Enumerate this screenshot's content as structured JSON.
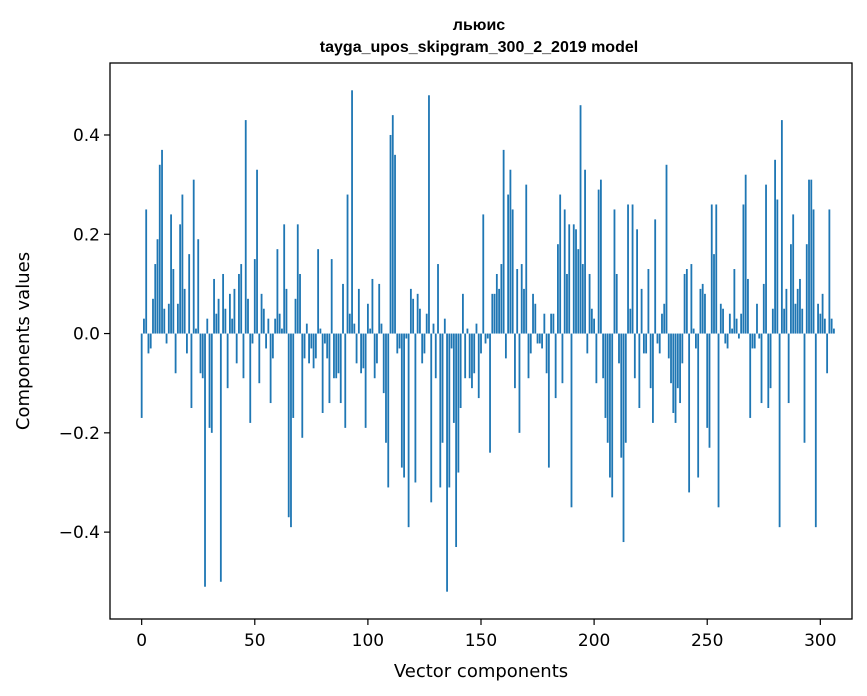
{
  "chart_data": {
    "type": "bar",
    "title": "льюис",
    "subtitle": "tayga_upos_skipgram_300_2_2019 model",
    "xlabel": "Vector components",
    "ylabel": "Components values",
    "xlim": [
      -14,
      314
    ],
    "ylim": [
      -0.575,
      0.545
    ],
    "xticks": [
      0,
      50,
      100,
      150,
      200,
      250,
      300
    ],
    "xtick_labels": [
      "0",
      "50",
      "100",
      "150",
      "200",
      "250",
      "300"
    ],
    "yticks": [
      -0.4,
      -0.2,
      0.0,
      0.2,
      0.4
    ],
    "ytick_labels": [
      "−0.4",
      "−0.2",
      "0.0",
      "0.2",
      "0.4"
    ],
    "bar_color": "#1f77b4",
    "grid": false,
    "values": [
      -0.17,
      0.03,
      0.25,
      -0.04,
      -0.03,
      0.07,
      0.14,
      0.19,
      0.34,
      0.37,
      0.05,
      -0.02,
      0.06,
      0.24,
      0.13,
      -0.08,
      0.06,
      0.22,
      0.28,
      0.09,
      -0.04,
      0.16,
      -0.15,
      0.31,
      0.01,
      0.19,
      -0.08,
      -0.09,
      -0.51,
      0.03,
      -0.19,
      -0.2,
      0.11,
      0.04,
      0.07,
      -0.5,
      0.12,
      0.05,
      -0.11,
      0.08,
      0.03,
      0.09,
      -0.06,
      0.12,
      0.14,
      -0.09,
      0.43,
      0.07,
      -0.18,
      -0.02,
      0.15,
      0.33,
      -0.1,
      0.08,
      0.05,
      -0.03,
      0.03,
      -0.14,
      -0.05,
      0.03,
      0.17,
      0.04,
      0.01,
      0.22,
      0.09,
      -0.37,
      -0.39,
      -0.17,
      0.07,
      0.22,
      0.12,
      -0.21,
      -0.05,
      0.02,
      -0.06,
      -0.03,
      -0.07,
      -0.05,
      0.17,
      0.01,
      -0.16,
      -0.02,
      -0.05,
      -0.14,
      0.15,
      -0.09,
      -0.09,
      -0.08,
      -0.14,
      0.1,
      -0.19,
      0.28,
      0.04,
      0.49,
      0.02,
      -0.06,
      0.09,
      -0.08,
      -0.07,
      -0.19,
      0.06,
      0.01,
      0.11,
      -0.09,
      -0.06,
      0.1,
      0.02,
      -0.12,
      -0.22,
      -0.31,
      0.4,
      0.44,
      0.36,
      -0.04,
      -0.03,
      -0.27,
      -0.29,
      -0.01,
      -0.39,
      0.09,
      0.07,
      -0.3,
      0.08,
      0.05,
      -0.06,
      -0.04,
      0.04,
      0.48,
      -0.34,
      0.02,
      -0.09,
      0.14,
      -0.31,
      -0.22,
      0.03,
      -0.52,
      -0.31,
      -0.03,
      -0.18,
      -0.43,
      -0.28,
      -0.15,
      0.08,
      -0.09,
      0.01,
      -0.09,
      -0.11,
      -0.08,
      0.02,
      -0.13,
      -0.04,
      0.24,
      -0.02,
      -0.01,
      -0.24,
      0.08,
      0.08,
      0.12,
      0.09,
      0.14,
      0.37,
      -0.05,
      0.28,
      0.33,
      0.25,
      -0.11,
      0.13,
      -0.2,
      0.14,
      0.09,
      0.3,
      -0.09,
      -0.04,
      0.08,
      0.06,
      -0.02,
      -0.02,
      -0.03,
      0.04,
      -0.08,
      -0.27,
      0.04,
      0.04,
      -0.13,
      0.18,
      0.28,
      -0.1,
      0.25,
      0.12,
      0.22,
      -0.35,
      0.22,
      0.21,
      0.17,
      0.46,
      0.14,
      0.33,
      -0.04,
      0.12,
      0.05,
      0.03,
      -0.1,
      0.29,
      0.31,
      -0.09,
      -0.17,
      -0.22,
      -0.29,
      -0.33,
      0.25,
      0.12,
      -0.06,
      -0.25,
      -0.42,
      -0.22,
      0.26,
      0.05,
      0.26,
      -0.09,
      0.21,
      -0.15,
      0.09,
      -0.04,
      -0.04,
      0.13,
      -0.11,
      -0.18,
      0.23,
      -0.02,
      -0.04,
      0.04,
      0.06,
      0.34,
      -0.05,
      -0.1,
      -0.16,
      -0.18,
      -0.11,
      -0.14,
      -0.06,
      0.12,
      0.13,
      -0.32,
      0.14,
      0.01,
      -0.03,
      -0.29,
      0.09,
      0.1,
      0.08,
      -0.19,
      -0.23,
      0.26,
      0.16,
      0.26,
      -0.35,
      0.06,
      0.05,
      -0.02,
      -0.03,
      0.04,
      0.01,
      0.13,
      0.03,
      -0.01,
      0.04,
      0.26,
      0.32,
      0.11,
      -0.17,
      -0.03,
      -0.03,
      0.06,
      -0.01,
      -0.14,
      0.1,
      0.3,
      -0.15,
      -0.11,
      0.05,
      0.35,
      0.27,
      -0.39,
      0.43,
      0.05,
      0.09,
      -0.14,
      0.18,
      0.24,
      0.06,
      0.09,
      0.11,
      0.05,
      -0.22,
      0.18,
      0.31,
      0.31,
      0.25,
      -0.39,
      0.06,
      0.04,
      0.08,
      0.03,
      -0.08,
      0.25,
      0.03,
      0.01
    ]
  }
}
